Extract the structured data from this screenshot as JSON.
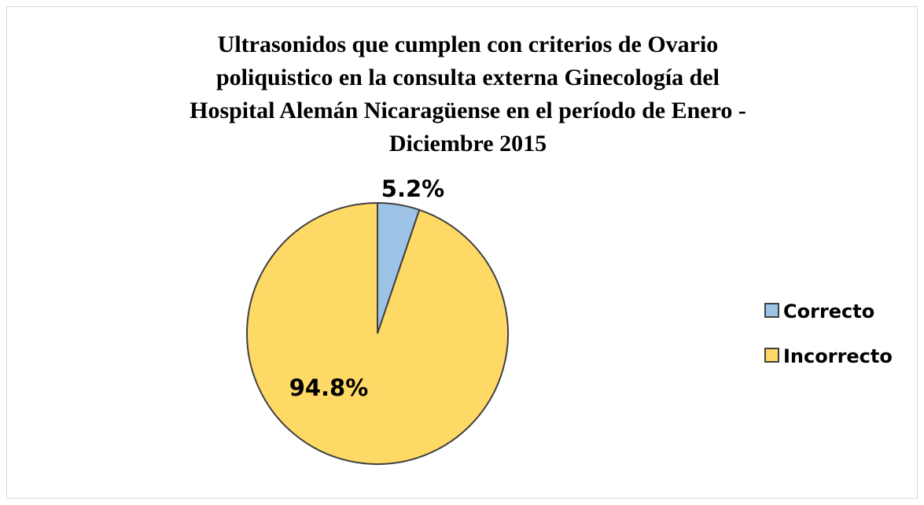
{
  "chart_data": {
    "type": "pie",
    "title": [
      "Ultrasonidos que cumplen con criterios de Ovario",
      "poliquistico en la consulta externa Ginecología del",
      "Hospital Alemán Nicaragüense en el período de Enero -",
      "Diciembre 2015"
    ],
    "categories": [
      "Correcto",
      "Incorrecto"
    ],
    "values": [
      5.2,
      94.8
    ],
    "value_labels": [
      "5.2%",
      "94.8%"
    ],
    "colors": [
      "#9dc3e6",
      "#ffd966"
    ],
    "legend": "right"
  }
}
